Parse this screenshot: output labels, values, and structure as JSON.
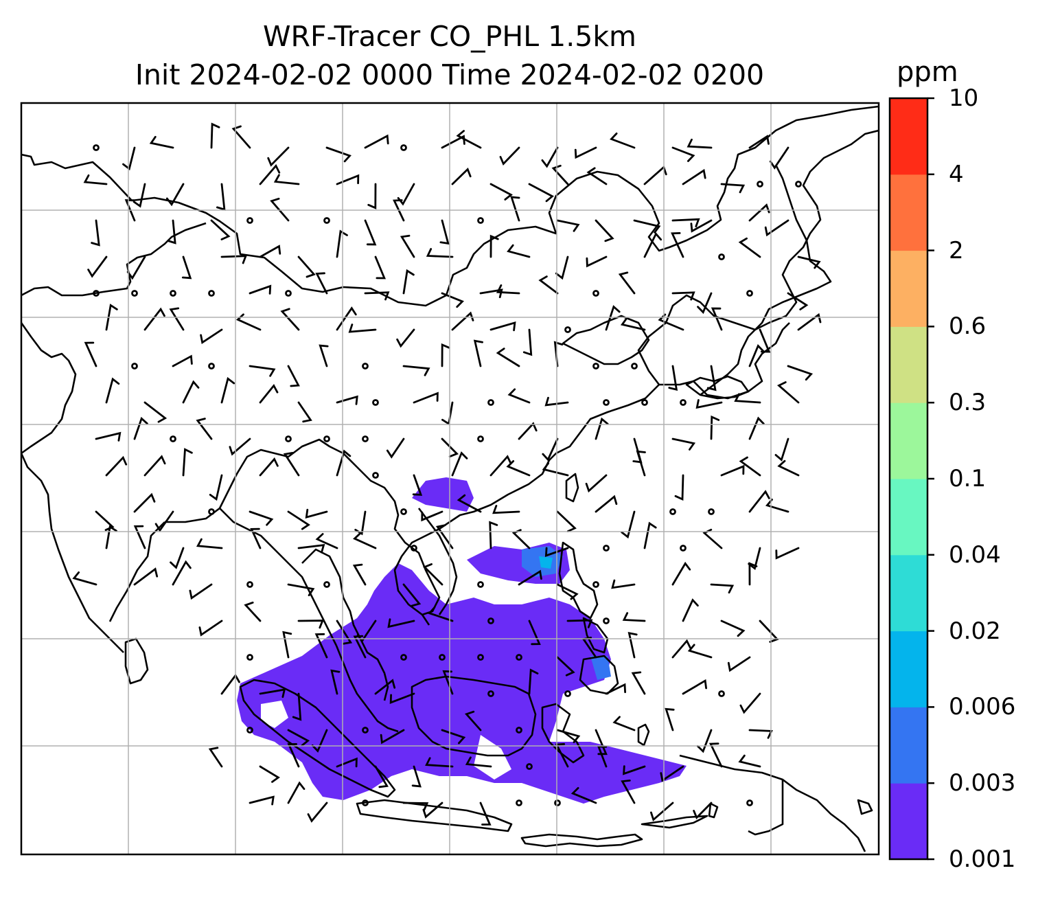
{
  "title": {
    "line1": "WRF-Tracer CO_PHL 1.5km",
    "line2": "Init 2024-02-02 0000 Time 2024-02-02 0200"
  },
  "colorbar": {
    "unit": "ppm",
    "levels": [
      "0.001",
      "0.003",
      "0.006",
      "0.02",
      "0.04",
      "0.1",
      "0.3",
      "0.6",
      "2",
      "4",
      "10"
    ],
    "colors": [
      "#6a2cf6",
      "#3475f2",
      "#04b4ec",
      "#2edcd6",
      "#68f7c1",
      "#9cf79b",
      "#cfe184",
      "#fdb062",
      "#ff713d",
      "#ff2c17"
    ]
  },
  "map": {
    "background": "#ffffff",
    "coastline_color": "#000000",
    "grid_color": "#b0b0b0",
    "grid_lines": {
      "columns": 7,
      "rows": 6
    },
    "tracer_plume": {
      "max_level_shown": "0.02",
      "dominant_level": "0.001"
    },
    "wind_barbs": true
  }
}
